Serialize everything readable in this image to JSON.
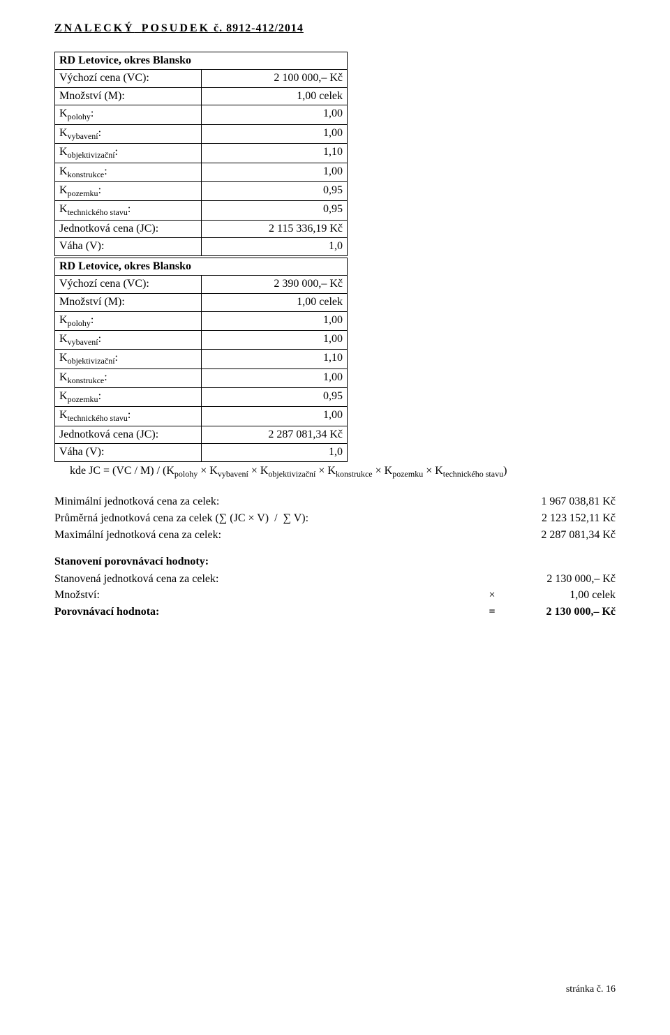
{
  "header": {
    "title_part1": "ZNALECKÝ",
    "title_part2": "POSUDEK",
    "number": "č. 8912-412/2014"
  },
  "tables": [
    {
      "title": "RD Letovice, okres Blansko",
      "rows": [
        {
          "label": "Výchozí cena (VC):",
          "value": "2 100 000,– Kč"
        },
        {
          "label": "Množství (M):",
          "value": "1,00 celek"
        },
        {
          "label_html": "K<span class='sub'>polohy</span>:",
          "value": "1,00"
        },
        {
          "label_html": "K<span class='sub'>vybavení</span>:",
          "value": "1,00"
        },
        {
          "label_html": "K<span class='sub'>objektivizační</span>:",
          "value": "1,10"
        },
        {
          "label_html": "K<span class='sub'>konstrukce</span>:",
          "value": "1,00"
        },
        {
          "label_html": "K<span class='sub'>pozemku</span>:",
          "value": "0,95"
        },
        {
          "label_html": "K<span class='sub'>technického stavu</span>:",
          "value": "0,95"
        },
        {
          "label": "Jednotková cena (JC):",
          "value": "2 115 336,19 Kč"
        },
        {
          "label": "Váha (V):",
          "value": "1,0"
        }
      ]
    },
    {
      "title": "RD Letovice, okres Blansko",
      "rows": [
        {
          "label": "Výchozí cena (VC):",
          "value": "2 390 000,– Kč"
        },
        {
          "label": "Množství (M):",
          "value": "1,00 celek"
        },
        {
          "label_html": "K<span class='sub'>polohy</span>:",
          "value": "1,00"
        },
        {
          "label_html": "K<span class='sub'>vybavení</span>:",
          "value": "1,00"
        },
        {
          "label_html": "K<span class='sub'>objektivizační</span>:",
          "value": "1,10"
        },
        {
          "label_html": "K<span class='sub'>konstrukce</span>:",
          "value": "1,00"
        },
        {
          "label_html": "K<span class='sub'>pozemku</span>:",
          "value": "0,95"
        },
        {
          "label_html": "K<span class='sub'>technického stavu</span>:",
          "value": "1,00"
        },
        {
          "label": "Jednotková cena (JC):",
          "value": "2 287 081,34 Kč"
        },
        {
          "label": "Váha (V):",
          "value": "1,0"
        }
      ]
    }
  ],
  "formula": {
    "text_html": "kde JC = (VC / M) / (K<span class='sub'>polohy</span> × K<span class='sub'>vybavení</span> × K<span class='sub'>objektivizační</span> × K<span class='sub'>konstrukce</span> × K<span class='sub'>pozemku</span> × K<span class='sub'>technického stavu</span>)"
  },
  "results": {
    "block1": [
      {
        "label": "Minimální jednotková cena za celek:",
        "value": "1 967 038,81 Kč"
      },
      {
        "label_html": "Průměrná jednotková cena za celek (∑ (JC × V)&nbsp;&nbsp;/&nbsp;&nbsp;∑ V):",
        "value": "2 123 152,11 Kč"
      },
      {
        "label": "Maximální jednotková cena za celek:",
        "value": "2 287 081,34 Kč"
      }
    ],
    "heading": "Stanovení porovnávací hodnoty:",
    "block2": [
      {
        "label": "Stanovená jednotková cena za celek:",
        "op": "",
        "value": "2 130 000,– Kč"
      },
      {
        "label": "Množství:",
        "op": "×",
        "value": "1,00 celek"
      },
      {
        "label": "Porovnávací hodnota:",
        "op": "=",
        "value": "2 130 000,– Kč",
        "bold": true
      }
    ]
  },
  "footer": {
    "text": "stránka č. 16"
  }
}
